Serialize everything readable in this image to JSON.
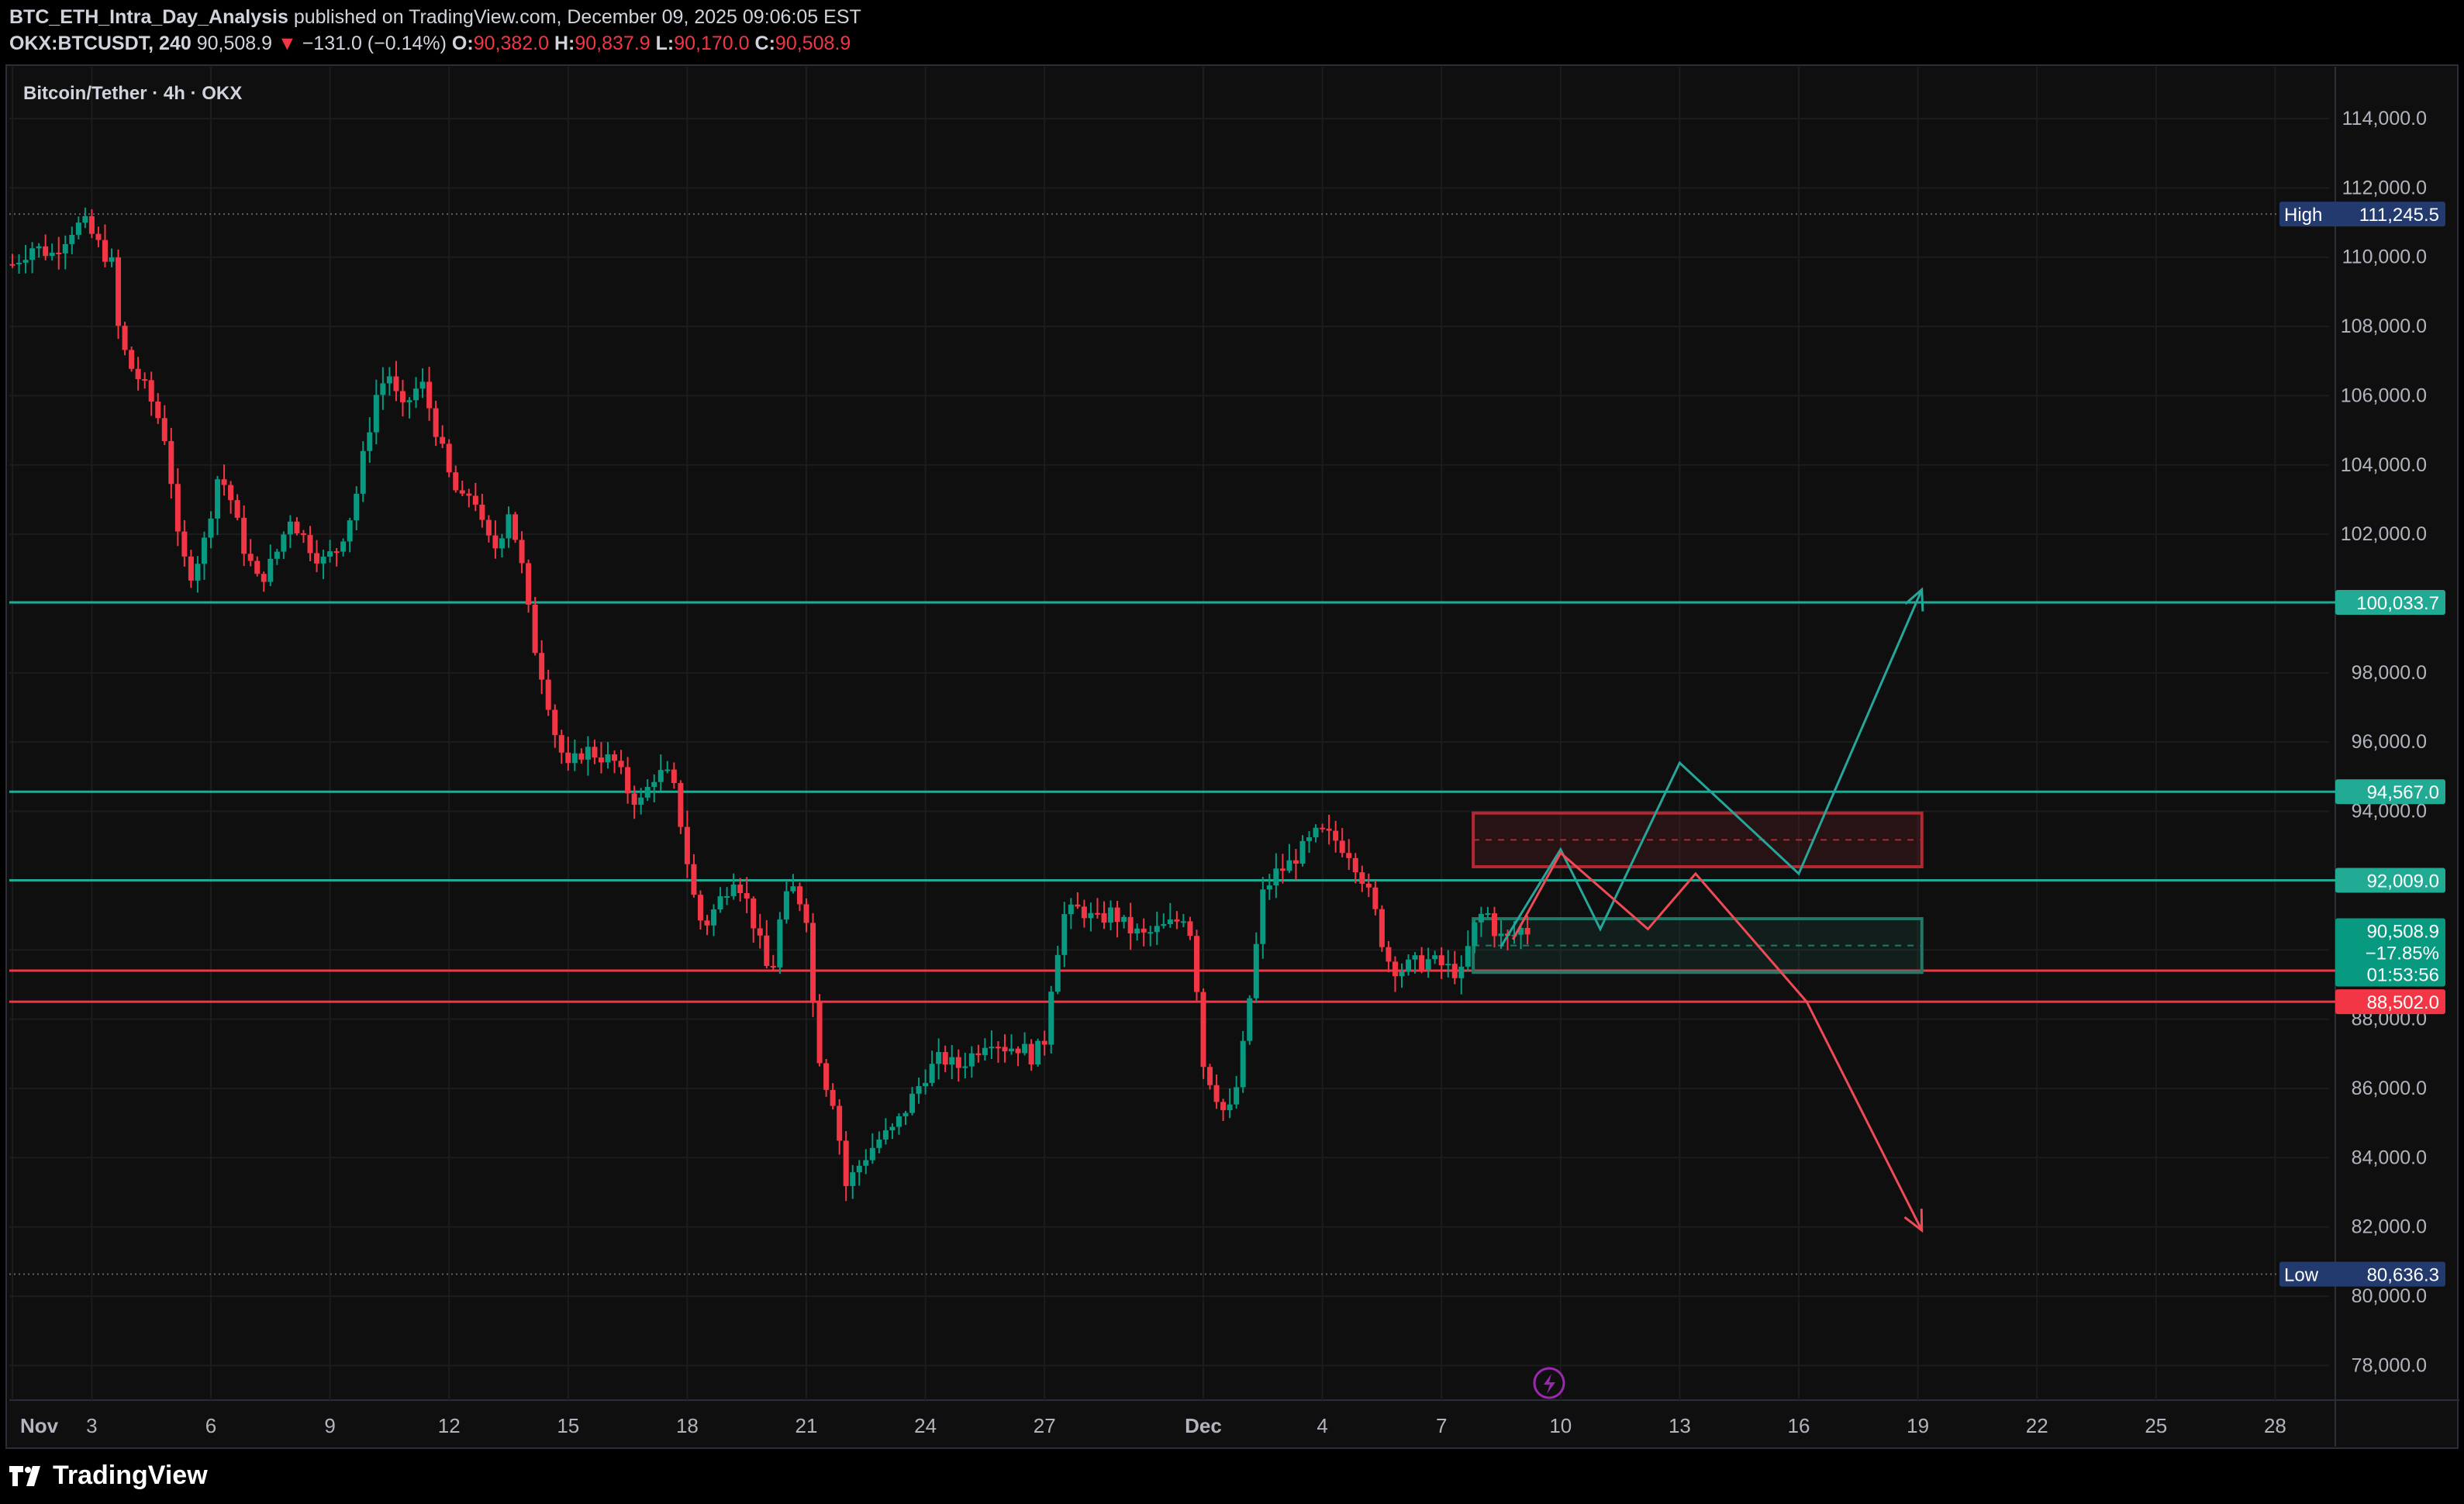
{
  "header": {
    "author": "BTC_ETH_Intra_Day_Analysis",
    "published_text": "published on TradingView.com, December 09, 2025 09:06:05 EST",
    "symbol": "OKX:BTCUSDT, 240",
    "last": "90,508.9",
    "change": "−131.0 (−0.14%)",
    "o_label": "O:",
    "o": "90,382.0",
    "h_label": "H:",
    "h": "90,837.9",
    "l_label": "L:",
    "l": "90,170.0",
    "c_label": "C:",
    "c": "90,508.9"
  },
  "footer": {
    "brand": "TradingView"
  },
  "colors": {
    "background": "#0f0f0f",
    "grid": "#1c1c1c",
    "up": "#089981",
    "down": "#f23645",
    "level_teal": "#22ab94",
    "level_red": "#f23645",
    "box_red": "#b22833",
    "box_green": "#1f7a68",
    "path_teal": "#26a69a",
    "path_red": "#f04a57",
    "axis_text": "#b2b5be",
    "high_low_badge": "#233a6e"
  },
  "chart_data": {
    "type": "candlestick",
    "title": "Bitcoin/Tether · 4h · OKX",
    "ylim": [
      77000,
      115500
    ],
    "y_ticks": [
      78000,
      80000,
      82000,
      84000,
      86000,
      88000,
      90000,
      92000,
      94000,
      96000,
      98000,
      100000,
      102000,
      104000,
      106000,
      108000,
      110000,
      112000,
      114000
    ],
    "y_tick_labels": [
      "78,000.0",
      "80,000.0",
      "82,000.0",
      "84,000.0",
      "86,000.0",
      "88,000.0",
      "90,000.0",
      "92,000.0",
      "94,000.0",
      "96,000.0",
      "98,000.0",
      "100,000.0",
      "102,000.0",
      "104,000.0",
      "106,000.0",
      "108,000.0",
      "110,000.0",
      "112,000.0",
      "114,000.0"
    ],
    "x_ticks": [
      {
        "label": "Nov",
        "day": 0,
        "bold": true
      },
      {
        "label": "3",
        "day": 2
      },
      {
        "label": "6",
        "day": 5
      },
      {
        "label": "9",
        "day": 8
      },
      {
        "label": "12",
        "day": 11
      },
      {
        "label": "15",
        "day": 14
      },
      {
        "label": "18",
        "day": 17
      },
      {
        "label": "21",
        "day": 20
      },
      {
        "label": "24",
        "day": 23
      },
      {
        "label": "27",
        "day": 26
      },
      {
        "label": "Dec",
        "day": 30,
        "bold": true
      },
      {
        "label": "4",
        "day": 33
      },
      {
        "label": "7",
        "day": 36
      },
      {
        "label": "10",
        "day": 39
      },
      {
        "label": "13",
        "day": 42
      },
      {
        "label": "16",
        "day": 45
      },
      {
        "label": "19",
        "day": 48
      },
      {
        "label": "22",
        "day": 51
      },
      {
        "label": "25",
        "day": 54
      },
      {
        "label": "28",
        "day": 57
      }
    ],
    "x_unit": "days since Nov 1, 2025 00:00",
    "price_path": [
      [
        0,
        109800
      ],
      [
        0.5,
        110300
      ],
      [
        1,
        110100
      ],
      [
        1.5,
        110800
      ],
      [
        1.8,
        111000
      ],
      [
        2.2,
        110300
      ],
      [
        2.5,
        109800
      ],
      [
        2.7,
        107600
      ],
      [
        3,
        106800
      ],
      [
        3.3,
        106300
      ],
      [
        3.6,
        105600
      ],
      [
        3.9,
        104600
      ],
      [
        4.2,
        101500
      ],
      [
        4.5,
        100900
      ],
      [
        4.8,
        101600
      ],
      [
        5.2,
        103800
      ],
      [
        5.5,
        103000
      ],
      [
        5.8,
        101700
      ],
      [
        6.2,
        100600
      ],
      [
        6.6,
        101300
      ],
      [
        7,
        102500
      ],
      [
        7.4,
        101800
      ],
      [
        7.8,
        101200
      ],
      [
        8.2,
        101600
      ],
      [
        8.6,
        102800
      ],
      [
        8.9,
        104600
      ],
      [
        9.2,
        106200
      ],
      [
        9.5,
        106600
      ],
      [
        9.8,
        105500
      ],
      [
        10,
        105900
      ],
      [
        10.3,
        106400
      ],
      [
        10.6,
        105300
      ],
      [
        11,
        103700
      ],
      [
        11.3,
        102900
      ],
      [
        11.6,
        103300
      ],
      [
        11.9,
        101900
      ],
      [
        12.2,
        101600
      ],
      [
        12.5,
        102700
      ],
      [
        12.8,
        101300
      ],
      [
        13.1,
        99000
      ],
      [
        13.4,
        97700
      ],
      [
        13.7,
        96100
      ],
      [
        14,
        95200
      ],
      [
        14.4,
        95800
      ],
      [
        14.8,
        95600
      ],
      [
        15.2,
        95400
      ],
      [
        15.5,
        94600
      ],
      [
        15.8,
        94200
      ],
      [
        16.2,
        95100
      ],
      [
        16.6,
        95000
      ],
      [
        16.9,
        93300
      ],
      [
        17.1,
        91800
      ],
      [
        17.4,
        90600
      ],
      [
        17.8,
        91400
      ],
      [
        18.2,
        92200
      ],
      [
        18.5,
        91400
      ],
      [
        18.8,
        90300
      ],
      [
        19.1,
        89100
      ],
      [
        19.4,
        91300
      ],
      [
        19.7,
        91800
      ],
      [
        20,
        91000
      ],
      [
        20.2,
        88000
      ],
      [
        20.4,
        86400
      ],
      [
        20.7,
        85600
      ],
      [
        21,
        83200
      ],
      [
        21.4,
        83900
      ],
      [
        21.8,
        84500
      ],
      [
        22.2,
        84800
      ],
      [
        22.6,
        85600
      ],
      [
        23,
        86400
      ],
      [
        23.4,
        86900
      ],
      [
        23.8,
        86600
      ],
      [
        24.2,
        87000
      ],
      [
        24.6,
        87500
      ],
      [
        25,
        87200
      ],
      [
        25.4,
        87200
      ],
      [
        25.7,
        86900
      ],
      [
        26,
        87400
      ],
      [
        26.2,
        89300
      ],
      [
        26.5,
        91000
      ],
      [
        26.9,
        91200
      ],
      [
        27.3,
        90800
      ],
      [
        27.7,
        91100
      ],
      [
        28.1,
        90600
      ],
      [
        28.5,
        90400
      ],
      [
        28.9,
        90600
      ],
      [
        29.3,
        90800
      ],
      [
        29.6,
        91100
      ],
      [
        29.8,
        89400
      ],
      [
        30,
        86700
      ],
      [
        30.3,
        85900
      ],
      [
        30.6,
        85100
      ],
      [
        30.9,
        86300
      ],
      [
        31.2,
        88900
      ],
      [
        31.5,
        91600
      ],
      [
        31.8,
        92200
      ],
      [
        32.1,
        92400
      ],
      [
        32.5,
        92900
      ],
      [
        32.9,
        93400
      ],
      [
        33.3,
        93200
      ],
      [
        33.7,
        92800
      ],
      [
        34,
        92100
      ],
      [
        34.3,
        91200
      ],
      [
        34.6,
        89800
      ],
      [
        34.9,
        89400
      ],
      [
        35.3,
        89600
      ],
      [
        35.7,
        89700
      ],
      [
        36.1,
        89500
      ],
      [
        36.5,
        89300
      ],
      [
        36.8,
        90600
      ],
      [
        37.1,
        91200
      ],
      [
        37.4,
        90400
      ],
      [
        37.7,
        90300
      ],
      [
        38,
        90600
      ],
      [
        38.3,
        90508.9
      ]
    ],
    "high": {
      "label": "High",
      "value": 111245.5,
      "day": 1.8
    },
    "low": {
      "label": "Low",
      "value": 80636.3,
      "day": 21.2
    },
    "levels": [
      {
        "value": 100033.7,
        "label": "100,033.7",
        "color": "teal"
      },
      {
        "value": 94567.0,
        "label": "94,567.0",
        "color": "teal"
      },
      {
        "value": 92009.0,
        "label": "92,009.0",
        "color": "teal"
      },
      {
        "value": 89400.0,
        "label": "",
        "color": "red"
      },
      {
        "value": 88502.0,
        "label": "88,502.0",
        "color": "red"
      }
    ],
    "current_price": {
      "value": 90508.9,
      "label": "90,508.9",
      "change_pct": "−17.85%",
      "countdown": "01:53:56"
    },
    "zones": [
      {
        "name": "resistance-zone",
        "top": 93950,
        "bottom": 92400,
        "from_day": 36.8,
        "to_day": 48.1,
        "color": "red"
      },
      {
        "name": "support-zone",
        "top": 90900,
        "bottom": 89350,
        "from_day": 36.8,
        "to_day": 48.1,
        "color": "green"
      }
    ],
    "bull_path": [
      [
        37.5,
        90100
      ],
      [
        39.0,
        92900
      ],
      [
        40.0,
        90600
      ],
      [
        42.0,
        95400
      ],
      [
        45.0,
        92200
      ],
      [
        48.1,
        100400
      ]
    ],
    "bear_path": [
      [
        37.8,
        90300
      ],
      [
        39.0,
        92800
      ],
      [
        41.2,
        90600
      ],
      [
        42.4,
        92200
      ],
      [
        45.2,
        88500
      ],
      [
        48.1,
        81900
      ]
    ]
  }
}
